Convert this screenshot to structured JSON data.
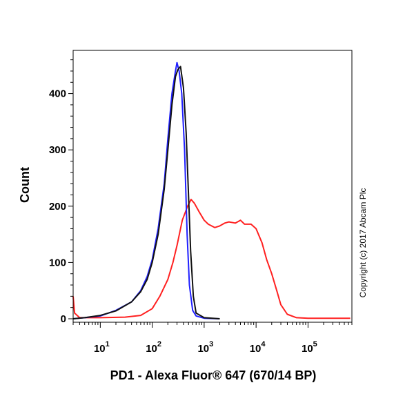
{
  "chart_data": {
    "type": "line",
    "xlabel": "PD1 - Alexa Fluor® 647 (670/14 BP)",
    "ylabel": "Count",
    "xscale": "log",
    "xlim": [
      3,
      700000
    ],
    "ylim": [
      0,
      480
    ],
    "x_ticks": [
      {
        "value": 10,
        "base": "10",
        "exp": "1"
      },
      {
        "value": 100,
        "base": "10",
        "exp": "2"
      },
      {
        "value": 1000,
        "base": "10",
        "exp": "3"
      },
      {
        "value": 10000,
        "base": "10",
        "exp": "4"
      },
      {
        "value": 100000,
        "base": "10",
        "exp": "5"
      }
    ],
    "y_ticks": [
      "0",
      "100",
      "200",
      "300",
      "400"
    ],
    "grid": false,
    "legend": "none",
    "series": [
      {
        "color": "#ff2020",
        "points": [
          [
            3,
            40
          ],
          [
            3.2,
            10
          ],
          [
            4,
            2
          ],
          [
            10,
            2
          ],
          [
            30,
            3
          ],
          [
            60,
            6
          ],
          [
            100,
            18
          ],
          [
            140,
            40
          ],
          [
            200,
            70
          ],
          [
            250,
            100
          ],
          [
            300,
            130
          ],
          [
            380,
            175
          ],
          [
            480,
            200
          ],
          [
            560,
            212
          ],
          [
            650,
            205
          ],
          [
            800,
            190
          ],
          [
            1000,
            175
          ],
          [
            1200,
            168
          ],
          [
            1600,
            162
          ],
          [
            2000,
            165
          ],
          [
            2500,
            170
          ],
          [
            3000,
            172
          ],
          [
            4000,
            170
          ],
          [
            5000,
            175
          ],
          [
            6000,
            168
          ],
          [
            8000,
            168
          ],
          [
            10000,
            160
          ],
          [
            13000,
            135
          ],
          [
            16000,
            105
          ],
          [
            20000,
            80
          ],
          [
            25000,
            50
          ],
          [
            30000,
            25
          ],
          [
            40000,
            8
          ],
          [
            60000,
            2
          ],
          [
            100000,
            1
          ],
          [
            650000,
            1
          ]
        ]
      },
      {
        "color": "#2020ff",
        "points": [
          [
            3,
            0
          ],
          [
            5,
            2
          ],
          [
            10,
            5
          ],
          [
            20,
            15
          ],
          [
            40,
            30
          ],
          [
            60,
            50
          ],
          [
            80,
            75
          ],
          [
            100,
            105
          ],
          [
            130,
            160
          ],
          [
            170,
            240
          ],
          [
            200,
            320
          ],
          [
            240,
            400
          ],
          [
            280,
            440
          ],
          [
            300,
            455
          ],
          [
            330,
            440
          ],
          [
            370,
            400
          ],
          [
            420,
            300
          ],
          [
            470,
            150
          ],
          [
            520,
            60
          ],
          [
            600,
            15
          ],
          [
            700,
            5
          ],
          [
            1000,
            1
          ],
          [
            2000,
            0
          ]
        ]
      },
      {
        "color": "#111111",
        "points": [
          [
            3,
            0
          ],
          [
            5,
            2
          ],
          [
            10,
            6
          ],
          [
            20,
            14
          ],
          [
            40,
            30
          ],
          [
            60,
            48
          ],
          [
            80,
            70
          ],
          [
            100,
            100
          ],
          [
            130,
            150
          ],
          [
            170,
            230
          ],
          [
            200,
            300
          ],
          [
            240,
            380
          ],
          [
            280,
            430
          ],
          [
            310,
            442
          ],
          [
            350,
            448
          ],
          [
            400,
            410
          ],
          [
            450,
            330
          ],
          [
            500,
            220
          ],
          [
            550,
            120
          ],
          [
            620,
            40
          ],
          [
            700,
            10
          ],
          [
            1000,
            2
          ],
          [
            2000,
            0
          ]
        ]
      }
    ]
  },
  "copyright": "Copyright (c) 2017 Abcam Plc"
}
